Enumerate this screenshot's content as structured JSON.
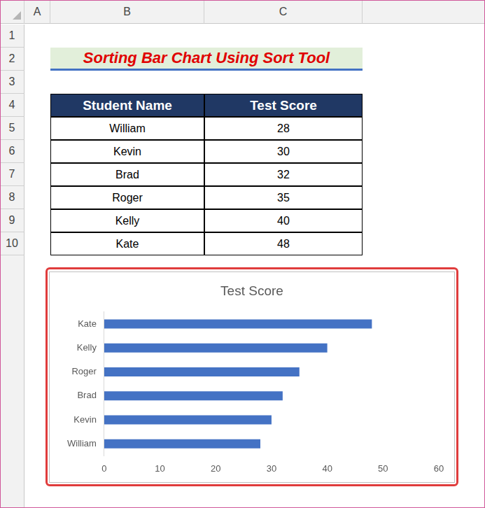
{
  "sheet": {
    "columns": [
      "A",
      "B",
      "C"
    ],
    "rows": [
      1,
      2,
      3,
      4,
      5,
      6,
      7,
      8,
      9,
      10
    ]
  },
  "heading": "Sorting Bar Chart Using Sort Tool",
  "table": {
    "header": [
      "Student Name",
      "Test Score"
    ],
    "rows": [
      [
        "William",
        28
      ],
      [
        "Kevin",
        30
      ],
      [
        "Brad",
        32
      ],
      [
        "Roger",
        35
      ],
      [
        "Kelly",
        40
      ],
      [
        "Kate",
        48
      ]
    ]
  },
  "chart_data": {
    "type": "bar",
    "orientation": "horizontal",
    "title": "Test Score",
    "categories": [
      "William",
      "Kevin",
      "Brad",
      "Roger",
      "Kelly",
      "Kate"
    ],
    "values": [
      28,
      30,
      32,
      35,
      40,
      48
    ],
    "color": "#4472c4",
    "xlim": [
      0,
      60
    ],
    "xticks": [
      0,
      10,
      20,
      30,
      40,
      50,
      60
    ],
    "grid": false
  }
}
